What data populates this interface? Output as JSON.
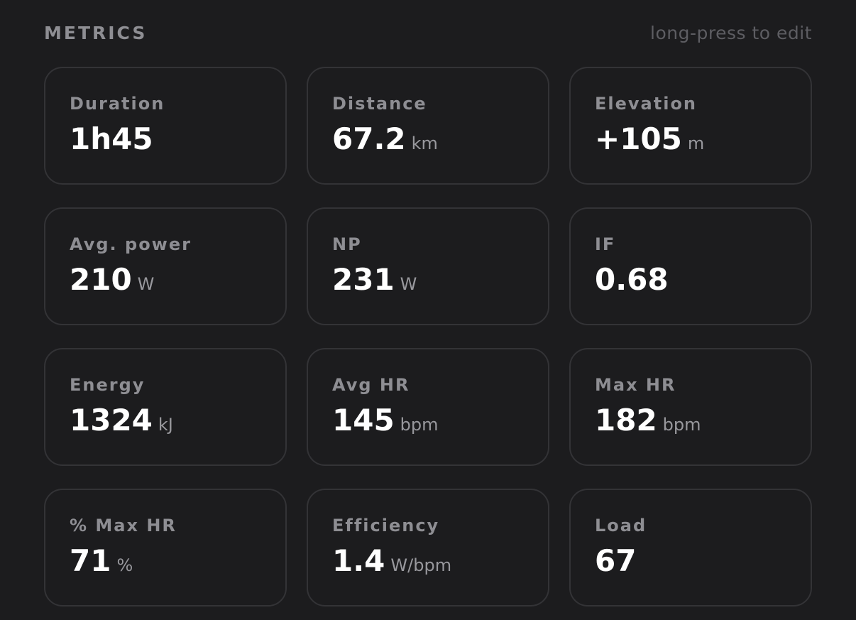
{
  "header": {
    "title": "METRICS",
    "hint": "long-press to edit"
  },
  "metrics": [
    {
      "label": "Duration",
      "value": "1h45",
      "unit": ""
    },
    {
      "label": "Distance",
      "value": "67.2",
      "unit": "km"
    },
    {
      "label": "Elevation",
      "value": "+105",
      "unit": "m"
    },
    {
      "label": "Avg. power",
      "value": "210",
      "unit": "W"
    },
    {
      "label": "NP",
      "value": "231",
      "unit": "W"
    },
    {
      "label": "IF",
      "value": "0.68",
      "unit": ""
    },
    {
      "label": "Energy",
      "value": "1324",
      "unit": "kJ"
    },
    {
      "label": "Avg HR",
      "value": "145",
      "unit": "bpm"
    },
    {
      "label": "Max HR",
      "value": "182",
      "unit": "bpm"
    },
    {
      "label": "% Max HR",
      "value": "71",
      "unit": "%"
    },
    {
      "label": "Efficiency",
      "value": "1.4",
      "unit": "W/bpm"
    },
    {
      "label": "Load",
      "value": "67",
      "unit": ""
    }
  ]
}
